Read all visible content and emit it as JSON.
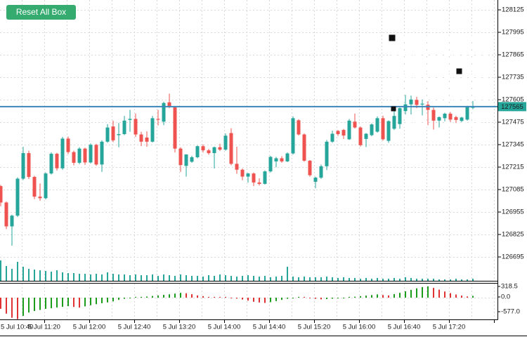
{
  "toolbar": {
    "reset_button_label": "Reset All Box",
    "reset_button_color": "#35ab6f"
  },
  "price_axis": {
    "tick_labels": [
      "128125",
      "127995",
      "127865",
      "127735",
      "127605",
      "127475",
      "127345",
      "127215",
      "127085",
      "126955",
      "126825",
      "126695"
    ],
    "current_price_tag": {
      "text": "127565",
      "bg": "#26a69a",
      "text_color": "#ffffff"
    }
  },
  "time_axis": {
    "tick_labels": [
      "5 Jul 10:40",
      "5 Jul 11:20",
      "5 Jul 12:00",
      "5 Jul 12:40",
      "5 Jul 13:20",
      "5 Jul 14:00",
      "5 Jul 14:40",
      "5 Jul 15:20",
      "5 Jul 16:00",
      "5 Jul 16:40",
      "5 Jul 17:20"
    ]
  },
  "oscillator_axis": {
    "tick_labels": [
      "318.5",
      "0.0",
      "-577.0"
    ]
  },
  "trade_box": {
    "entry_price": 127565,
    "target_price": 127975,
    "stop_price": 127445,
    "target_zone_color": "#90e890",
    "stop_zone_color": "#ffc7d0",
    "entry_line_color": "#3a86b8",
    "handle_color": "#111111"
  },
  "colors": {
    "bull": "#26a69a",
    "bear": "#ef5350",
    "volume": "#26a69a",
    "osc_up": "#1c9c1c",
    "osc_down": "#e03232",
    "grid": "#d8d8d8",
    "box_grid": "#ffffff",
    "axis_line": "#000000"
  },
  "chart_data": {
    "type": "candlestick",
    "title": "",
    "candle_interval_minutes": 5,
    "ylim": [
      126556,
      128182
    ],
    "price_grid_step": 130,
    "x_labels": [
      "5 Jul 10:40",
      "5 Jul 11:20",
      "5 Jul 12:00",
      "5 Jul 12:40",
      "5 Jul 13:20",
      "5 Jul 14:00",
      "5 Jul 14:40",
      "5 Jul 15:20",
      "5 Jul 16:00",
      "5 Jul 16:40",
      "5 Jul 17:20"
    ],
    "price_line": 127565,
    "box": {
      "left_time": "5 Jul 16:40",
      "top": 127975,
      "entry": 127565,
      "bottom": 127445
    },
    "candles": [
      [
        127105,
        127112,
        126988,
        127010
      ],
      [
        127010,
        127016,
        126856,
        126872
      ],
      [
        126872,
        126940,
        126760,
        126934
      ],
      [
        126934,
        127155,
        126926,
        127148
      ],
      [
        127148,
        127332,
        127140,
        127296
      ],
      [
        127296,
        127310,
        127146,
        127158
      ],
      [
        127158,
        127165,
        127030,
        127044
      ],
      [
        127044,
        127120,
        127020,
        127035
      ],
      [
        127035,
        127185,
        127028,
        127178
      ],
      [
        127178,
        127300,
        127172,
        127292
      ],
      [
        127292,
        127298,
        127195,
        127208
      ],
      [
        127208,
        127390,
        127200,
        127380
      ],
      [
        127380,
        127392,
        127290,
        127302
      ],
      [
        127302,
        127310,
        127225,
        127240
      ],
      [
        127240,
        127330,
        127232,
        127322
      ],
      [
        127322,
        127328,
        127228,
        127242
      ],
      [
        127242,
        127352,
        127236,
        127344
      ],
      [
        127344,
        127350,
        127222,
        127230
      ],
      [
        127230,
        127370,
        127187,
        127362
      ],
      [
        127362,
        127464,
        127356,
        127444
      ],
      [
        127450,
        127484,
        127360,
        127370
      ],
      [
        127400,
        127470,
        127330,
        127406
      ],
      [
        127406,
        127511,
        127400,
        127484
      ],
      [
        127488,
        127546,
        127420,
        127494
      ],
      [
        127494,
        127525,
        127390,
        127404
      ],
      [
        127404,
        127420,
        127336,
        127362
      ],
      [
        127386,
        127422,
        127333,
        127362
      ],
      [
        127362,
        127511,
        127358,
        127498
      ],
      [
        127494,
        127546,
        127456,
        127490
      ],
      [
        127478,
        127593,
        127458,
        127586
      ],
      [
        127590,
        127640,
        127556,
        127565
      ],
      [
        127561,
        127568,
        127300,
        127322
      ],
      [
        127322,
        127330,
        127187,
        127227
      ],
      [
        127222,
        127290,
        127160,
        127288
      ],
      [
        127246,
        127280,
        127240,
        127272
      ],
      [
        127272,
        127340,
        127266,
        127336
      ],
      [
        127336,
        127346,
        127300,
        127312
      ],
      [
        127312,
        127320,
        127286,
        127296
      ],
      [
        127296,
        127334,
        127207,
        127330
      ],
      [
        127330,
        127350,
        127308,
        127316
      ],
      [
        127316,
        127410,
        127310,
        127397
      ],
      [
        127412,
        127440,
        127226,
        127234
      ],
      [
        127234,
        127333,
        127176,
        127200
      ],
      [
        127200,
        127207,
        127139,
        127160
      ],
      [
        127160,
        127182,
        127125,
        127178
      ],
      [
        127178,
        127184,
        127105,
        127126
      ],
      [
        127126,
        127150,
        127108,
        127118
      ],
      [
        127118,
        127196,
        127114,
        127190
      ],
      [
        127190,
        127280,
        127184,
        127274
      ],
      [
        127248,
        127274,
        127214,
        127266
      ],
      [
        127266,
        127278,
        127240,
        127248
      ],
      [
        127248,
        127300,
        127244,
        127294
      ],
      [
        127294,
        127508,
        127288,
        127498
      ],
      [
        127486,
        127492,
        127398,
        127404
      ],
      [
        127404,
        127410,
        127246,
        127252
      ],
      [
        127252,
        127256,
        127160,
        127168
      ],
      [
        127130,
        127160,
        127092,
        127154
      ],
      [
        127154,
        127230,
        127146,
        127220
      ],
      [
        127220,
        127372,
        127198,
        127362
      ],
      [
        127362,
        127426,
        127356,
        127408
      ],
      [
        127424,
        127430,
        127396,
        127406
      ],
      [
        127430,
        127436,
        127378,
        127398
      ],
      [
        127376,
        127494,
        127372,
        127484
      ],
      [
        127478,
        127525,
        127438,
        127444
      ],
      [
        127444,
        127450,
        127334,
        127342
      ],
      [
        127378,
        127412,
        127331,
        127408
      ],
      [
        127400,
        127468,
        127394,
        127462
      ],
      [
        127420,
        127508,
        127414,
        127498
      ],
      [
        127498,
        127512,
        127368,
        127376
      ],
      [
        127367,
        127486,
        127356,
        127481
      ],
      [
        127437,
        127545,
        127430,
        127511
      ],
      [
        127464,
        127560,
        127437,
        127556
      ],
      [
        127539,
        127633,
        127520,
        127578
      ],
      [
        127578,
        127629,
        127520,
        127606
      ],
      [
        127604,
        127622,
        127556,
        127575
      ],
      [
        127578,
        127606,
        127514,
        127582
      ],
      [
        127576,
        127596,
        127458,
        127546
      ],
      [
        127546,
        127560,
        127432,
        127484
      ],
      [
        127484,
        127508,
        127444,
        127504
      ],
      [
        127498,
        127530,
        127480,
        127524
      ],
      [
        127524,
        127534,
        127476,
        127490
      ],
      [
        127504,
        127512,
        127470,
        127488
      ],
      [
        127482,
        127506,
        127476,
        127502
      ],
      [
        127490,
        127570,
        127484,
        127564
      ],
      [
        127558,
        127598,
        127550,
        127565
      ]
    ],
    "volume": [
      29,
      21,
      17,
      27,
      20,
      17,
      16,
      15,
      14,
      13,
      15,
      12,
      11,
      11,
      10,
      10,
      9,
      10,
      9,
      12,
      10,
      9,
      9,
      8,
      9,
      8,
      8,
      9,
      7,
      9,
      8,
      7,
      9,
      8,
      7,
      7,
      6,
      8,
      7,
      9,
      8,
      7,
      6,
      7,
      8,
      7,
      6,
      7,
      5,
      6,
      7,
      20,
      6,
      5,
      6,
      5,
      5,
      5,
      6,
      5,
      4,
      5,
      4,
      4,
      3,
      4,
      3,
      4,
      3,
      3,
      4,
      3,
      5,
      4,
      3,
      3,
      3,
      3,
      2,
      2,
      2,
      3,
      2,
      2,
      3
    ],
    "oscillator": {
      "max_label": 318.5,
      "zero_label": 0.0,
      "min_label": -577.0,
      "values": [
        -300,
        -430,
        -540,
        -577,
        -490,
        -400,
        -360,
        -330,
        -300,
        -285,
        -265,
        -245,
        -230,
        -250,
        -268,
        -235,
        -205,
        -175,
        -150,
        -128,
        -100,
        -60,
        -30,
        -12,
        6,
        15,
        30,
        45,
        60,
        75,
        90,
        110,
        130,
        118,
        92,
        60,
        40,
        20,
        10,
        5,
        3,
        -6,
        -25,
        -50,
        -80,
        -110,
        -130,
        -142,
        -120,
        -92,
        -60,
        -30,
        -10,
        10,
        5,
        -14,
        -30,
        -45,
        -38,
        -28,
        -18,
        -8,
        12,
        25,
        40,
        55,
        70,
        88,
        70,
        60,
        95,
        130,
        170,
        210,
        250,
        285,
        305,
        262,
        215,
        165,
        122,
        85,
        55,
        32,
        48
      ],
      "colors": "rrrrgggggggggrrggggggggggggggggggrrrrrrrrrrrrrrrggggggrrrrggggggggggrrgggggggrrrrrrrg"
    }
  }
}
